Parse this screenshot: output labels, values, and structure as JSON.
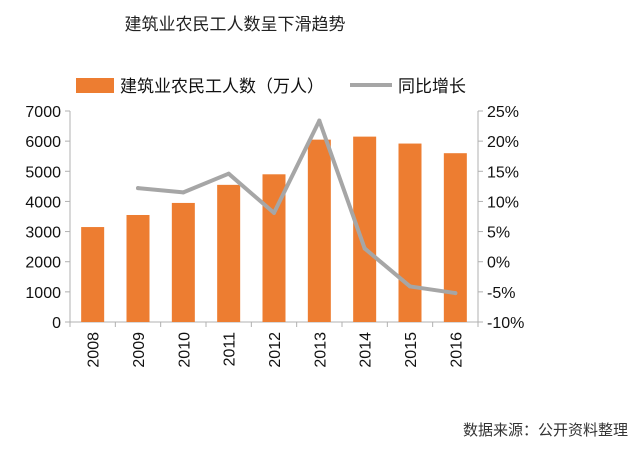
{
  "title": "建筑业农民工人数呈下滑趋势",
  "source": "数据来源：公开资料整理",
  "colors": {
    "bar": "#ED7D31",
    "line": "#A6A6A6",
    "axis": "#B0B0B0"
  },
  "chart_data": {
    "type": "bar",
    "categories": [
      "2008",
      "2009",
      "2010",
      "2011",
      "2012",
      "2013",
      "2014",
      "2015",
      "2016"
    ],
    "series": [
      {
        "name": "建筑业农民工人数（万人）",
        "type": "bar",
        "axis": "left",
        "values": [
          3150,
          3550,
          3950,
          4550,
          4900,
          6050,
          6150,
          5920,
          5600
        ]
      },
      {
        "name": "同比增长",
        "type": "line",
        "axis": "right",
        "values": [
          null,
          12.2,
          11.5,
          14.6,
          8.1,
          23.4,
          2.2,
          -4.1,
          -5.2
        ]
      }
    ],
    "ylim_left": [
      0,
      7000
    ],
    "yticks_left": [
      "0",
      "1000",
      "2000",
      "3000",
      "4000",
      "5000",
      "6000",
      "7000"
    ],
    "ylim_right": [
      -10,
      25
    ],
    "yticks_right": [
      "-10%",
      "-5%",
      "0%",
      "5%",
      "10%",
      "15%",
      "20%",
      "25%"
    ],
    "legend_position": "top",
    "grid": false
  }
}
